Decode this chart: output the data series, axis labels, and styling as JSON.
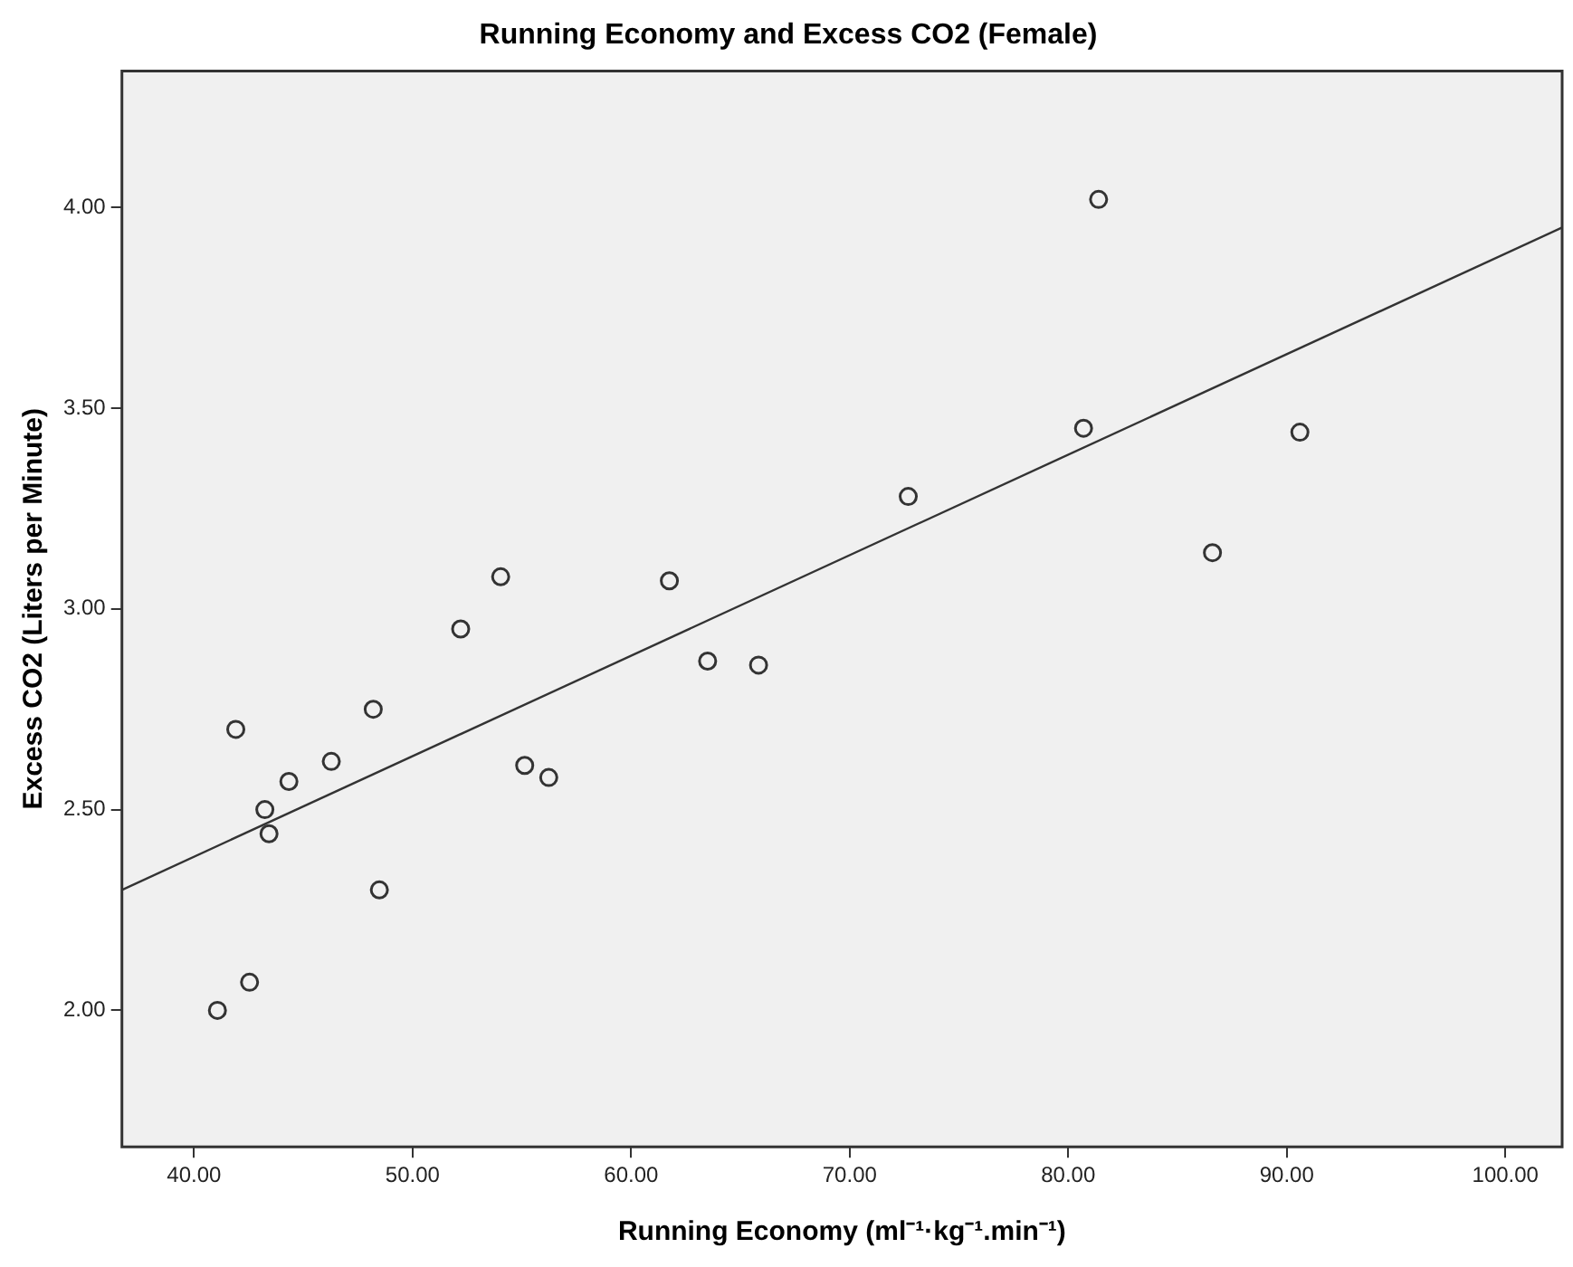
{
  "chart_data": {
    "type": "scatter",
    "title": "Running Economy and Excess CO2 (Female)",
    "xlabel": "Running Economy (ml⁻¹·kg⁻¹.min⁻¹)",
    "ylabel": "Excess CO2 (Liters per Minute)",
    "xlim": [
      36.7,
      102.6
    ],
    "ylim": [
      1.66,
      4.34
    ],
    "xticks": [
      {
        "value": 40,
        "label": "40.00"
      },
      {
        "value": 50,
        "label": "50.00"
      },
      {
        "value": 60,
        "label": "60.00"
      },
      {
        "value": 70,
        "label": "70.00"
      },
      {
        "value": 80,
        "label": "80.00"
      },
      {
        "value": 90,
        "label": "90.00"
      },
      {
        "value": 100,
        "label": "100.00"
      }
    ],
    "yticks": [
      {
        "value": 2,
        "label": "2.00"
      },
      {
        "value": 2.5,
        "label": "2.50"
      },
      {
        "value": 3,
        "label": "3.00"
      },
      {
        "value": 3.5,
        "label": "3.50"
      },
      {
        "value": 4,
        "label": "4.00"
      }
    ],
    "grid": false,
    "marker": "circle",
    "series": [
      {
        "type": "scatter",
        "color": "#333333",
        "x": [
          41.07,
          42.54,
          41.91,
          43.24,
          43.43,
          44.34,
          46.28,
          48.2,
          48.48,
          52.2,
          54.03,
          55.13,
          56.23,
          61.75,
          63.5,
          65.83,
          72.68,
          80.7,
          81.39,
          86.6,
          90.6
        ],
        "values": [
          2.0,
          2.07,
          2.7,
          2.5,
          2.44,
          2.57,
          2.62,
          2.75,
          2.3,
          2.95,
          3.08,
          2.61,
          2.58,
          3.07,
          2.87,
          2.86,
          3.28,
          3.45,
          4.02,
          3.14,
          3.44
        ]
      },
      {
        "type": "line",
        "color": "#333333",
        "marker": "none",
        "x": [
          36.7,
          102.6
        ],
        "values": [
          2.3,
          3.95
        ]
      }
    ]
  }
}
